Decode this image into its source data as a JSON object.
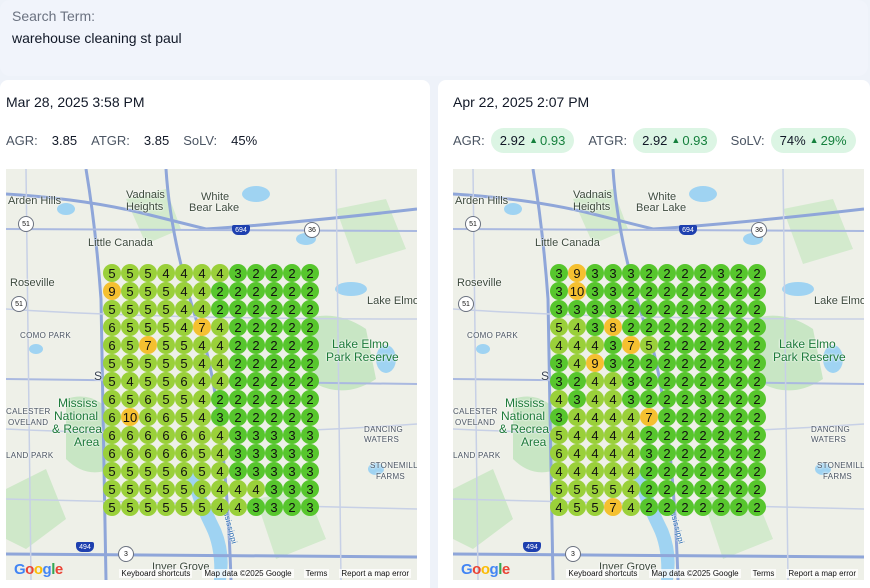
{
  "search": {
    "label": "Search Term:",
    "term": "warehouse cleaning st paul"
  },
  "colors": {
    "rank_1_3": "#57c62d",
    "rank_4_6": "#9ad03a",
    "rank_7_10": "#f5c030",
    "pill_bg": "#dcf5e4",
    "delta_green": "#15803d"
  },
  "map_labels": {
    "arden_hills": "Arden Hills",
    "vadnais": "Vadnais",
    "heights": "Heights",
    "white": "White",
    "bear_lake": "Bear Lake",
    "little_canada": "Little Canada",
    "roseville": "Roseville",
    "lake_elmo": "Lake Elmo",
    "como_park": "COMO PARK",
    "lake_elmo_park": "Lake Elmo",
    "park_reserve": "Park Reserve",
    "mississ": "Mississ",
    "national": "National",
    "recrea": "& Recrea",
    "area": "Area",
    "calester": "CALESTER",
    "oveland": "OVELAND",
    "dancing": "DANCING",
    "waters": "WATERS",
    "land_park": "LAND PARK",
    "stonemill": "STONEMILL",
    "farms": "FARMS",
    "inver_grove": "Inver Grove",
    "s": "S",
    "hwy_694": "694",
    "hwy_494": "494",
    "hwy_51a": "51",
    "hwy_51b": "51",
    "hwy_36": "36",
    "hwy_3": "3",
    "mississippi": "Mississippi",
    "keyboard": "Keyboard shortcuts",
    "map_data": "Map data ©2025 Google",
    "terms": "Terms",
    "report": "Report a map error",
    "google": [
      "G",
      "o",
      "o",
      "g",
      "l",
      "e"
    ]
  },
  "panels": [
    {
      "date": "Mar 28, 2025 3:58 PM",
      "metrics": [
        {
          "label": "AGR:",
          "value": "3.85",
          "delta": ""
        },
        {
          "label": "ATGR:",
          "value": "3.85",
          "delta": ""
        },
        {
          "label": "SoLV:",
          "value": "45%",
          "delta": ""
        }
      ],
      "grid": [
        [
          5,
          5,
          5,
          4,
          4,
          4,
          4,
          3,
          2,
          2,
          2,
          2
        ],
        [
          9,
          5,
          5,
          5,
          4,
          4,
          2,
          2,
          2,
          2,
          2,
          2
        ],
        [
          5,
          5,
          5,
          5,
          4,
          4,
          2,
          2,
          2,
          2,
          2,
          2
        ],
        [
          6,
          5,
          5,
          5,
          4,
          7,
          4,
          2,
          2,
          2,
          2,
          2
        ],
        [
          6,
          5,
          7,
          5,
          5,
          4,
          4,
          2,
          2,
          2,
          2,
          2
        ],
        [
          5,
          5,
          5,
          5,
          5,
          4,
          4,
          2,
          2,
          2,
          2,
          2
        ],
        [
          5,
          4,
          5,
          5,
          6,
          4,
          4,
          2,
          2,
          2,
          2,
          2
        ],
        [
          6,
          5,
          6,
          5,
          5,
          4,
          2,
          2,
          2,
          2,
          2,
          2
        ],
        [
          6,
          10,
          6,
          6,
          5,
          4,
          3,
          2,
          2,
          2,
          2,
          2
        ],
        [
          6,
          6,
          6,
          6,
          6,
          6,
          4,
          3,
          3,
          3,
          3,
          3
        ],
        [
          6,
          6,
          6,
          6,
          6,
          5,
          4,
          3,
          3,
          3,
          3,
          3
        ],
        [
          5,
          5,
          5,
          5,
          6,
          5,
          4,
          3,
          3,
          3,
          3,
          3
        ],
        [
          5,
          5,
          5,
          5,
          5,
          6,
          4,
          4,
          4,
          3,
          3,
          3
        ],
        [
          5,
          5,
          5,
          5,
          5,
          5,
          4,
          4,
          3,
          3,
          2,
          3
        ]
      ]
    },
    {
      "date": "Apr 22, 2025 2:07 PM",
      "metrics": [
        {
          "label": "AGR:",
          "value": "2.92",
          "delta": "0.93"
        },
        {
          "label": "ATGR:",
          "value": "2.92",
          "delta": "0.93"
        },
        {
          "label": "SoLV:",
          "value": "74%",
          "delta": "29%"
        }
      ],
      "grid": [
        [
          3,
          9,
          3,
          3,
          3,
          2,
          2,
          2,
          2,
          3,
          2,
          2
        ],
        [
          3,
          10,
          3,
          3,
          2,
          2,
          2,
          2,
          2,
          2,
          2,
          2
        ],
        [
          3,
          3,
          3,
          3,
          2,
          2,
          2,
          2,
          2,
          2,
          2,
          2
        ],
        [
          5,
          4,
          3,
          8,
          2,
          2,
          2,
          2,
          2,
          2,
          2,
          2
        ],
        [
          4,
          4,
          4,
          3,
          7,
          5,
          2,
          2,
          2,
          2,
          2,
          2
        ],
        [
          3,
          4,
          9,
          3,
          2,
          2,
          2,
          2,
          2,
          2,
          2,
          2
        ],
        [
          3,
          2,
          4,
          4,
          3,
          2,
          2,
          2,
          2,
          2,
          2,
          2
        ],
        [
          4,
          3,
          4,
          4,
          3,
          2,
          2,
          2,
          3,
          2,
          2,
          2
        ],
        [
          3,
          4,
          4,
          4,
          4,
          7,
          2,
          2,
          2,
          2,
          2,
          2
        ],
        [
          5,
          4,
          4,
          4,
          4,
          2,
          2,
          2,
          2,
          2,
          2,
          2
        ],
        [
          6,
          4,
          4,
          4,
          4,
          3,
          2,
          2,
          2,
          2,
          2,
          2
        ],
        [
          4,
          4,
          4,
          4,
          4,
          2,
          2,
          2,
          2,
          2,
          2,
          2
        ],
        [
          5,
          5,
          5,
          5,
          4,
          2,
          2,
          2,
          2,
          2,
          2,
          2
        ],
        [
          4,
          5,
          5,
          7,
          4,
          2,
          2,
          2,
          2,
          2,
          2,
          2
        ]
      ]
    }
  ]
}
